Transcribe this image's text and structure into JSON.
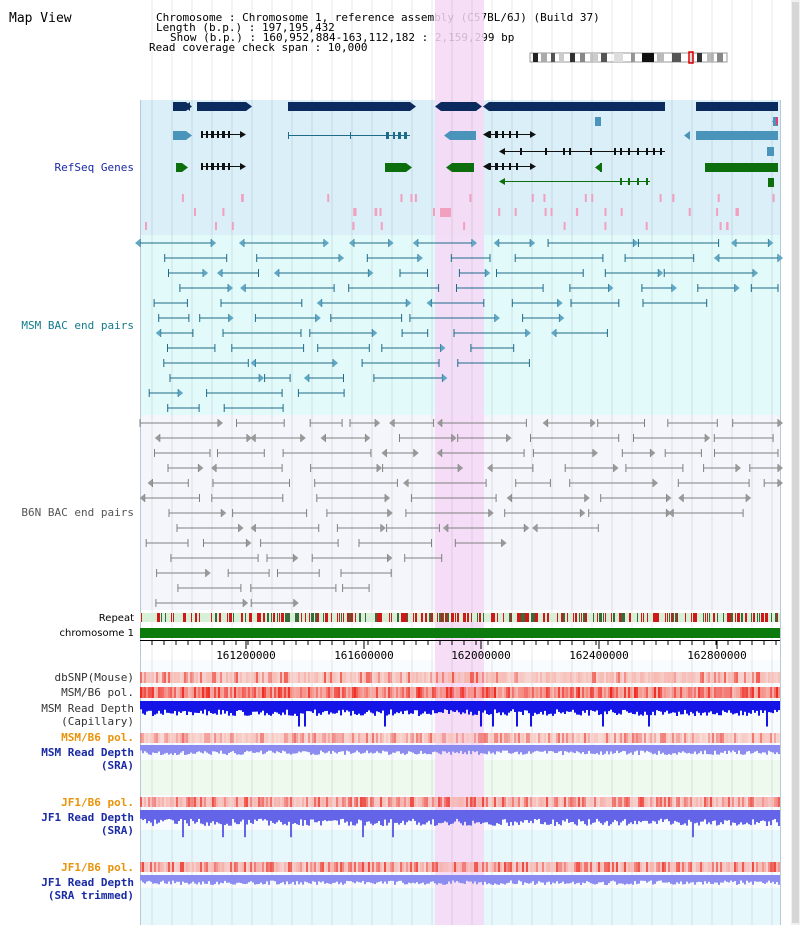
{
  "title": "Map View",
  "info": {
    "chromosome": "Chromosome     : Chromosome 1, reference assembly (C57BL/6J) (Build 37)",
    "length": "Length (b.p.) : 197,195,432",
    "show": "Show (b.p.) : 160,952,884-163,112,182 : 2,159,299 bp",
    "coverage": "Read coverage check span : 10,000"
  },
  "tracks": {
    "refseq": "RefSeq Genes",
    "msm_bac": "MSM BAC end pairs",
    "b6n_bac": "B6N BAC end pairs",
    "repeat": "Repeat",
    "chromosome": "chromosome 1",
    "dbsnp": "dbSNP(Mouse)",
    "msm_b6_pol": "MSM/B6 pol.",
    "msm_depth_cap_1": "MSM Read Depth",
    "msm_depth_cap_2": "(Capillary)",
    "msm_b6_pol_2": "MSM/B6 pol.",
    "msm_depth_sra_1": "MSM Read Depth",
    "msm_depth_sra_2": "(SRA)",
    "jf1_b6_pol": "JF1/B6 pol.",
    "jf1_depth_sra_1": "JF1 Read Depth",
    "jf1_depth_sra_2": "(SRA)",
    "jf1_b6_pol_2": "JF1/B6 pol.",
    "jf1_depth_trim_1": "JF1 Read Depth",
    "jf1_depth_trim_2": "(SRA trimmed)"
  },
  "ruler": {
    "ticks": [
      "161200000",
      "161600000",
      "162000000",
      "162400000",
      "162800000"
    ]
  },
  "colors": {
    "refseq_bg": "#dbeff9",
    "msm_bg": "#e3fafa",
    "b6n_bg": "#f4f6fb",
    "highlight": "#f6d8f6",
    "gene_dark": "#0b2a5e",
    "gene_mid": "#4a94bb",
    "gene_green": "#0c6e0c",
    "msm_line": "#1e6b8a",
    "b6n_line": "#808080",
    "label_blue": "#1a2aa5",
    "label_orange": "#e8930a",
    "label_teal": "#137a8a"
  }
}
